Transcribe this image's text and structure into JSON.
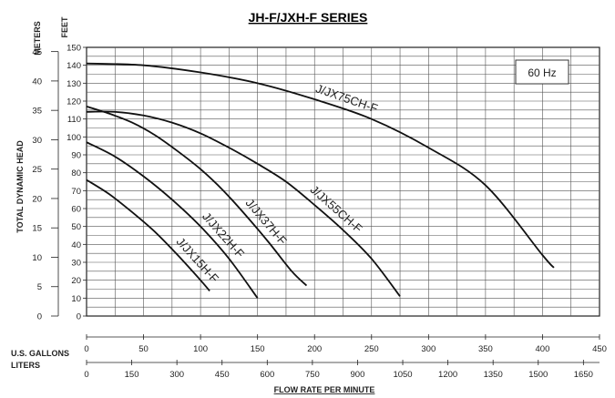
{
  "chart_data": {
    "type": "line",
    "title": "JH-F/JXH-F SERIES",
    "xlabel": "FLOW RATE PER MINUTE",
    "ylabel": "TOTAL DYNAMIC HEAD",
    "y_left_unit": "METERS",
    "y_right_unit": "FEET",
    "x_primary_unit": "U.S. GALLONS",
    "x_secondary_unit": "LITERS",
    "annotation": "60 Hz",
    "grid": true,
    "xlim": [
      0,
      450
    ],
    "ylim_feet": [
      0,
      150
    ],
    "ylim_meters": [
      0,
      45
    ],
    "x_ticks_gallons": [
      "0",
      "50",
      "100",
      "150",
      "200",
      "250",
      "300",
      "350",
      "400",
      "450"
    ],
    "x_ticks_liters": [
      "0",
      "150",
      "300",
      "450",
      "600",
      "750",
      "900",
      "1050",
      "1200",
      "1350",
      "1500",
      "1650"
    ],
    "y_ticks_feet": [
      "0",
      "10",
      "20",
      "30",
      "40",
      "50",
      "60",
      "70",
      "80",
      "90",
      "100",
      "110",
      "120",
      "130",
      "140",
      "150"
    ],
    "y_ticks_meters": [
      "0",
      "5",
      "10",
      "15",
      "20",
      "25",
      "30",
      "35",
      "40",
      "45"
    ],
    "series": [
      {
        "name": "J/JX15H-F",
        "x": [
          0,
          20,
          40,
          60,
          80,
          100,
          108
        ],
        "y": [
          76,
          68,
          58,
          47,
          34,
          20,
          14
        ]
      },
      {
        "name": "J/JX22H-F",
        "x": [
          0,
          25,
          50,
          75,
          100,
          125,
          150
        ],
        "y": [
          97,
          89,
          78,
          65,
          50,
          32,
          10
        ]
      },
      {
        "name": "J/JX37H-F",
        "x": [
          0,
          20,
          40,
          60,
          80,
          100,
          120,
          140,
          160,
          180,
          193
        ],
        "y": [
          117,
          113,
          108,
          101,
          92,
          82,
          70,
          56,
          41,
          25,
          17
        ]
      },
      {
        "name": "J/JX55CH-F",
        "x": [
          0,
          25,
          50,
          75,
          100,
          125,
          150,
          175,
          200,
          225,
          250,
          275
        ],
        "y": [
          114,
          114,
          112,
          108,
          102,
          94,
          85,
          75,
          62,
          48,
          32,
          11
        ]
      },
      {
        "name": "J/JX75CH-F",
        "x": [
          0,
          50,
          100,
          150,
          200,
          250,
          300,
          350,
          400,
          410
        ],
        "y": [
          141,
          140,
          136,
          130,
          121,
          110,
          94,
          73,
          34,
          27
        ]
      }
    ]
  }
}
